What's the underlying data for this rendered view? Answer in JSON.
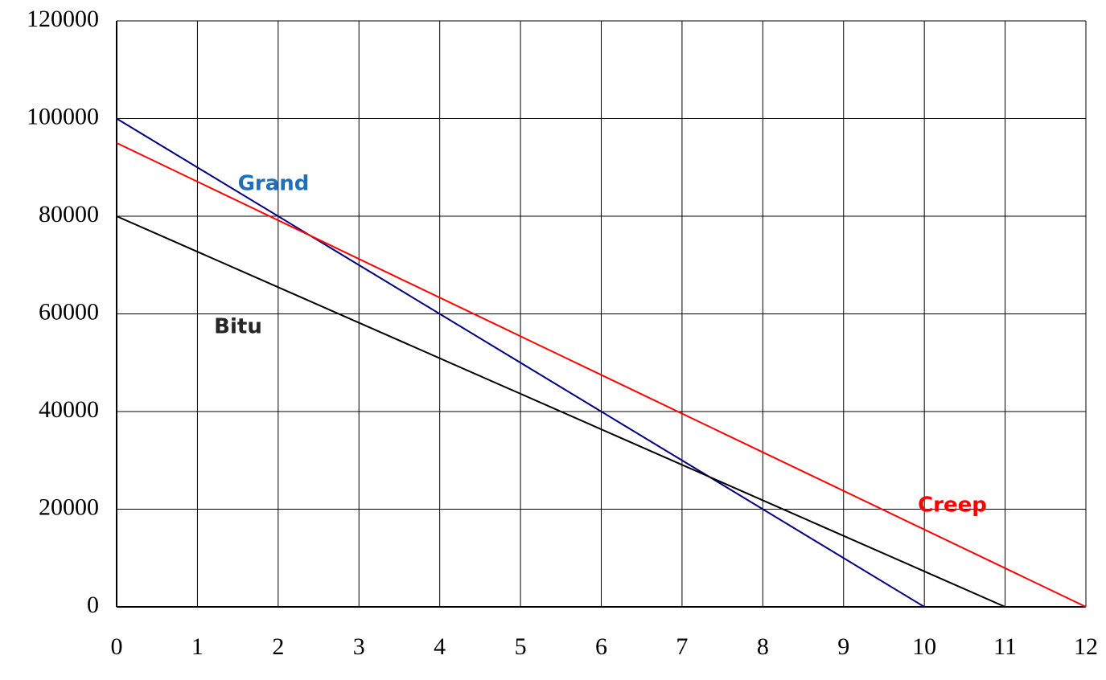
{
  "chart_data": {
    "type": "line",
    "xlim": [
      0,
      12
    ],
    "xticks": [
      0,
      1,
      2,
      3,
      4,
      5,
      6,
      7,
      8,
      9,
      10,
      11,
      12
    ],
    "ylim": [
      0,
      120000
    ],
    "yticks": [
      0,
      20000,
      40000,
      60000,
      80000,
      100000,
      120000
    ],
    "grid": true,
    "series": [
      {
        "name": "Grand",
        "color": "#000080",
        "label_color": "#1f6fbf",
        "x": [
          0,
          10
        ],
        "values": [
          100000,
          0
        ]
      },
      {
        "name": "Bitu",
        "color": "#000000",
        "label_color": "#262626",
        "x": [
          0,
          11
        ],
        "values": [
          80000,
          0
        ]
      },
      {
        "name": "Creep",
        "color": "#ff0000",
        "label_color": "#ff0000",
        "x": [
          0,
          12
        ],
        "values": [
          95000,
          0
        ]
      }
    ]
  }
}
